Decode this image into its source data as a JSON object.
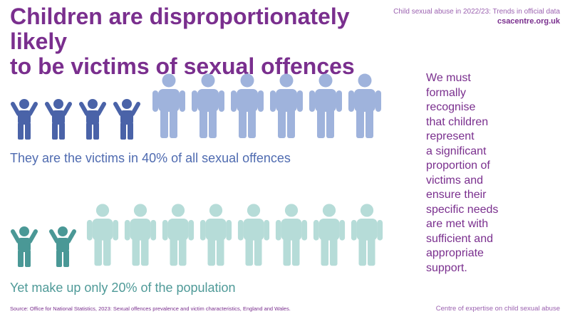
{
  "header": {
    "title_line1": "Children are disproportionately likely",
    "title_line2": "to be victims of sexual offences",
    "publication": "Child sexual abuse in 2022/23: Trends in official data",
    "website": "csacentre.org.uk"
  },
  "victims_stat": {
    "text": "They are the victims in 40% of all sexual offences",
    "children_icons": 4,
    "adult_icons": 6
  },
  "population_stat": {
    "text": "Yet make up only 20% of the population",
    "children_icons": 2,
    "adult_icons": 8
  },
  "icons": {
    "child": "child-arms-raised-icon",
    "adult": "adult-standing-icon"
  },
  "colors": {
    "title": "#7a2f8e",
    "victim_child": "#4a63a8",
    "victim_adult": "#9fb3dc",
    "population_child": "#4a9896",
    "population_adult": "#b6dcd8"
  },
  "side_text": "We must\nformally\nrecognise\nthat children\nrepresent\na significant\nproportion of\nvictims and\nensure their\nspecific needs\nare met with\nsufficient and\nappropriate\nsupport.",
  "footer": {
    "source": "Source: Office for National Statistics, 2023: Sexual offences prevalence and victim characteristics, England and Wales.",
    "organisation": "Centre of expertise on child sexual abuse"
  }
}
